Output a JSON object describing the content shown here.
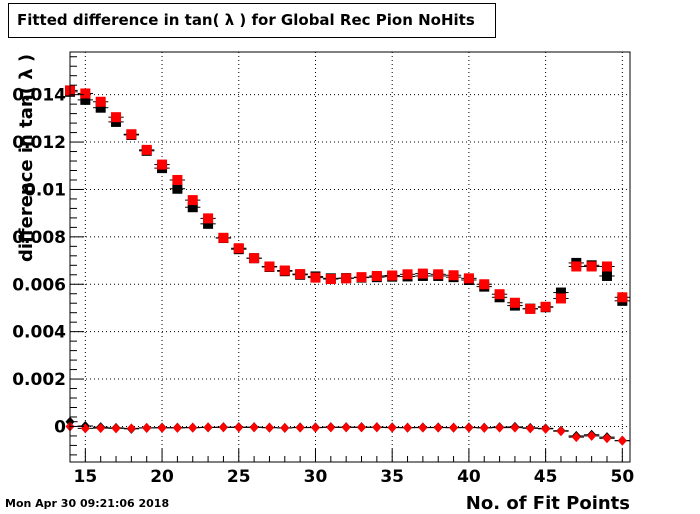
{
  "title": "Fitted difference in tan( λ ) for Global Rec Pion NoHits",
  "footer": "Mon Apr 30 09:21:06 2018",
  "chart_data": {
    "type": "scatter",
    "xlabel": "No. of Fit Points",
    "ylabel": "difference in tan( λ )",
    "xlim": [
      14,
      50.5
    ],
    "ylim": [
      -0.0015,
      0.0158
    ],
    "grid": true,
    "x_ticks": [
      15,
      20,
      25,
      30,
      35,
      40,
      45,
      50
    ],
    "y_ticks": [
      0,
      0.002,
      0.004,
      0.006,
      0.008,
      0.01,
      0.012,
      0.014
    ],
    "x_tick_labels": [
      "15",
      "20",
      "25",
      "30",
      "35",
      "40",
      "45",
      "50"
    ],
    "y_tick_labels": [
      "0",
      "0.002",
      "0.004",
      "0.006",
      "0.008",
      "0.01",
      "0.012",
      "0.014"
    ],
    "series": [
      {
        "marker": "square",
        "color": "#000000",
        "x": [
          14,
          15,
          16,
          17,
          18,
          19,
          20,
          21,
          22,
          23,
          24,
          25,
          26,
          27,
          28,
          29,
          30,
          31,
          32,
          33,
          34,
          35,
          36,
          37,
          38,
          39,
          40,
          41,
          42,
          43,
          44,
          45,
          46,
          47,
          48,
          49,
          50
        ],
        "y": [
          0.01412,
          0.01378,
          0.01345,
          0.01285,
          0.0123,
          0.01163,
          0.0109,
          0.01003,
          0.00925,
          0.00855,
          0.00795,
          0.00748,
          0.0071,
          0.00673,
          0.00655,
          0.0064,
          0.00633,
          0.00625,
          0.00626,
          0.00628,
          0.0063,
          0.00632,
          0.00633,
          0.00635,
          0.00635,
          0.0063,
          0.00618,
          0.0059,
          0.00545,
          0.0051,
          0.00497,
          0.00503,
          0.00565,
          0.0069,
          0.0068,
          0.00635,
          0.0053
        ]
      },
      {
        "marker": "square",
        "color": "#ff0000",
        "x": [
          14,
          15,
          16,
          17,
          18,
          19,
          20,
          21,
          22,
          23,
          24,
          25,
          26,
          27,
          28,
          29,
          30,
          31,
          32,
          33,
          34,
          35,
          36,
          37,
          38,
          39,
          40,
          41,
          42,
          43,
          44,
          45,
          46,
          47,
          48,
          49,
          50
        ],
        "y": [
          0.01418,
          0.01405,
          0.0137,
          0.01305,
          0.01233,
          0.01167,
          0.01105,
          0.0104,
          0.00955,
          0.00878,
          0.00796,
          0.00752,
          0.0071,
          0.00675,
          0.00658,
          0.00643,
          0.00628,
          0.00622,
          0.00625,
          0.0063,
          0.00635,
          0.00637,
          0.00642,
          0.00645,
          0.00642,
          0.00638,
          0.00625,
          0.006,
          0.00558,
          0.00522,
          0.00496,
          0.00505,
          0.0054,
          0.00675,
          0.00675,
          0.00675,
          0.00545
        ]
      },
      {
        "marker": "diamond",
        "color": "#000000",
        "x": [
          14,
          15,
          16,
          17,
          18,
          19,
          20,
          21,
          22,
          23,
          24,
          25,
          26,
          27,
          28,
          29,
          30,
          31,
          32,
          33,
          34,
          35,
          36,
          37,
          38,
          39,
          40,
          41,
          42,
          43,
          44,
          45,
          46,
          47,
          48,
          49,
          50
        ],
        "y": [
          0.0002,
          2e-05,
          -3e-05,
          -6e-05,
          -0.0001,
          -6e-05,
          -5e-05,
          -5e-05,
          -5e-05,
          -4e-05,
          -3e-05,
          -3e-05,
          -3e-05,
          -5e-05,
          -6e-05,
          -4e-05,
          -4e-05,
          -3e-05,
          -3e-05,
          -3e-05,
          -3e-05,
          -4e-05,
          -5e-05,
          -4e-05,
          -4e-05,
          -5e-05,
          -4e-05,
          -5e-05,
          -3e-05,
          -2e-05,
          -6e-05,
          -8e-05,
          -0.00018,
          -0.0004,
          -0.00035,
          -0.00045,
          -0.0006
        ]
      },
      {
        "marker": "diamond",
        "color": "#ff0000",
        "x": [
          14,
          15,
          16,
          17,
          18,
          19,
          20,
          21,
          22,
          23,
          24,
          25,
          26,
          27,
          28,
          29,
          30,
          31,
          32,
          33,
          34,
          35,
          36,
          37,
          38,
          39,
          40,
          41,
          42,
          43,
          44,
          45,
          46,
          47,
          48,
          49,
          50
        ],
        "y": [
          0.0,
          -8e-05,
          -7e-05,
          -8e-05,
          -8e-05,
          -6e-05,
          -6e-05,
          -6e-05,
          -5e-05,
          -4e-05,
          -4e-05,
          -4e-05,
          -4e-05,
          -5e-05,
          -6e-05,
          -5e-05,
          -5e-05,
          -4e-05,
          -4e-05,
          -4e-05,
          -4e-05,
          -5e-05,
          -5e-05,
          -5e-05,
          -5e-05,
          -5e-05,
          -5e-05,
          -6e-05,
          -5e-05,
          -5e-05,
          -8e-05,
          -0.0001,
          -0.0002,
          -0.00045,
          -0.0004,
          -0.0005,
          -0.0006
        ]
      }
    ]
  }
}
